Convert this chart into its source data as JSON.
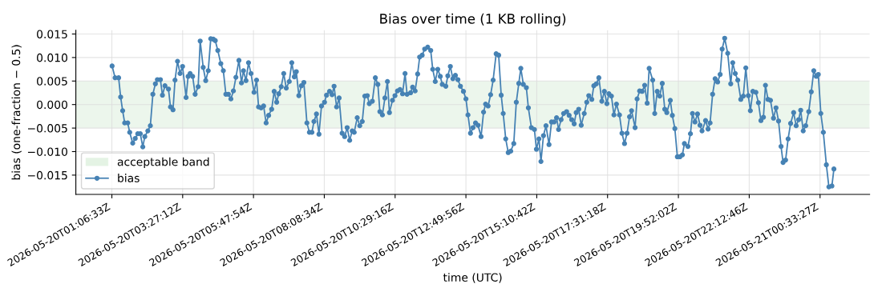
{
  "chart_data": {
    "type": "line",
    "title": "Bias over time (1 KB rolling)",
    "xlabel": "time (UTC)",
    "ylabel": "bias (one-fraction − 0.5)",
    "xlim": [
      "2026-05-19T23:55",
      "2026-05-21T02:12"
    ],
    "ylim": [
      -0.0191,
      0.0158
    ],
    "xticks": [
      {
        "value": "2026-05-20T01:06:33",
        "label": "2026-05-20T01:06:33Z"
      },
      {
        "value": "2026-05-20T03:27:12",
        "label": "2026-05-20T03:27:12Z"
      },
      {
        "value": "2026-05-20T05:47:54",
        "label": "2026-05-20T05:47:54Z"
      },
      {
        "value": "2026-05-20T08:08:34",
        "label": "2026-05-20T08:08:34Z"
      },
      {
        "value": "2026-05-20T10:29:16",
        "label": "2026-05-20T10:29:16Z"
      },
      {
        "value": "2026-05-20T12:49:56",
        "label": "2026-05-20T12:49:56Z"
      },
      {
        "value": "2026-05-20T15:10:42",
        "label": "2026-05-20T15:10:42Z"
      },
      {
        "value": "2026-05-20T17:31:18",
        "label": "2026-05-20T17:31:18Z"
      },
      {
        "value": "2026-05-20T19:52:02",
        "label": "2026-05-20T19:52:02Z"
      },
      {
        "value": "2026-05-20T22:12:46",
        "label": "2026-05-20T22:12:46Z"
      },
      {
        "value": "2026-05-21T00:33:27",
        "label": "2026-05-21T00:33:27Z"
      }
    ],
    "yticks": [
      {
        "value": -0.015,
        "label": "−0.015"
      },
      {
        "value": -0.01,
        "label": "−0.010"
      },
      {
        "value": -0.005,
        "label": "−0.005"
      },
      {
        "value": 0,
        "label": "0.000"
      },
      {
        "value": 0.005,
        "label": "0.005"
      },
      {
        "value": 0.01,
        "label": "0.010"
      },
      {
        "value": 0.015,
        "label": "0.015"
      }
    ],
    "grid": true,
    "legend": "bottom left",
    "marker": "circle",
    "line_style": "solid",
    "bands": [
      {
        "axis": "y",
        "from": -0.005,
        "to": 0.005,
        "label": "acceptable band",
        "color": "#2ca02c"
      }
    ],
    "series": [
      {
        "name": "bias",
        "color": "#4682b4",
        "x": [
          "2026-05-20T01:07",
          "2026-05-20T01:13",
          "2026-05-20T01:20",
          "2026-05-20T01:24",
          "2026-05-20T01:28",
          "2026-05-20T01:32",
          "2026-05-20T01:38",
          "2026-05-20T01:42",
          "2026-05-20T01:48",
          "2026-05-20T01:53",
          "2026-05-20T01:58",
          "2026-05-20T02:03",
          "2026-05-20T02:08",
          "2026-05-20T02:12",
          "2026-05-20T02:18",
          "2026-05-20T02:23",
          "2026-05-20T02:28",
          "2026-05-20T02:33",
          "2026-05-20T02:37",
          "2026-05-20T02:43",
          "2026-05-20T02:47",
          "2026-05-20T02:52",
          "2026-05-20T02:59",
          "2026-05-20T03:03",
          "2026-05-20T03:08",
          "2026-05-20T03:12",
          "2026-05-20T03:17",
          "2026-05-20T03:22",
          "2026-05-20T03:27",
          "2026-05-20T03:34",
          "2026-05-20T03:38",
          "2026-05-20T03:42",
          "2026-05-20T03:47",
          "2026-05-20T03:52",
          "2026-05-20T03:58",
          "2026-05-20T04:02",
          "2026-05-20T04:08",
          "2026-05-20T04:13",
          "2026-05-20T04:18",
          "2026-05-20T04:23",
          "2026-05-20T04:28",
          "2026-05-20T04:32",
          "2026-05-20T04:37",
          "2026-05-20T04:43",
          "2026-05-20T04:48",
          "2026-05-20T04:53",
          "2026-05-20T04:58",
          "2026-05-20T05:03",
          "2026-05-20T05:08",
          "2026-05-20T05:13",
          "2026-05-20T05:19",
          "2026-05-20T05:24",
          "2026-05-20T05:28",
          "2026-05-20T05:33",
          "2026-05-20T05:38",
          "2026-05-20T05:43",
          "2026-05-20T05:49",
          "2026-05-20T05:54",
          "2026-05-20T05:58",
          "2026-05-20T06:03",
          "2026-05-20T06:08",
          "2026-05-20T06:13",
          "2026-05-20T06:18",
          "2026-05-20T06:24",
          "2026-05-20T06:29",
          "2026-05-20T06:34",
          "2026-05-20T06:38",
          "2026-05-20T06:43",
          "2026-05-20T06:48",
          "2026-05-20T06:53",
          "2026-05-20T06:59",
          "2026-05-20T07:04",
          "2026-05-20T07:09",
          "2026-05-20T07:13",
          "2026-05-20T07:18",
          "2026-05-20T07:23",
          "2026-05-20T07:28",
          "2026-05-20T07:34",
          "2026-05-20T07:39",
          "2026-05-20T07:44",
          "2026-05-20T07:48",
          "2026-05-20T07:53",
          "2026-05-20T07:58",
          "2026-05-20T08:03",
          "2026-05-20T08:09",
          "2026-05-20T08:13",
          "2026-05-20T08:19",
          "2026-05-20T08:24",
          "2026-05-20T08:28",
          "2026-05-20T08:33",
          "2026-05-20T08:38",
          "2026-05-20T08:44",
          "2026-05-20T08:49",
          "2026-05-20T08:54",
          "2026-05-20T08:59",
          "2026-05-20T09:04",
          "2026-05-20T09:08",
          "2026-05-20T09:14",
          "2026-05-20T09:19",
          "2026-05-20T09:24",
          "2026-05-20T09:29",
          "2026-05-20T09:34",
          "2026-05-20T09:38",
          "2026-05-20T09:44",
          "2026-05-20T09:50",
          "2026-05-20T09:55",
          "2026-05-20T09:59",
          "2026-05-20T10:04",
          "2026-05-20T10:09",
          "2026-05-20T10:14",
          "2026-05-20T10:18",
          "2026-05-20T10:24",
          "2026-05-20T10:29",
          "2026-05-20T10:34",
          "2026-05-20T10:39",
          "2026-05-20T10:44",
          "2026-05-20T10:49",
          "2026-05-20T10:53",
          "2026-05-20T11:00",
          "2026-05-20T11:04",
          "2026-05-20T11:09",
          "2026-05-20T11:14",
          "2026-05-20T11:18",
          "2026-05-20T11:23",
          "2026-05-20T11:28",
          "2026-05-20T11:34",
          "2026-05-20T11:40",
          "2026-05-20T11:44",
          "2026-05-20T11:49",
          "2026-05-20T11:54",
          "2026-05-20T11:59",
          "2026-05-20T12:03",
          "2026-05-20T12:10",
          "2026-05-20T12:14",
          "2026-05-20T12:19",
          "2026-05-20T12:24",
          "2026-05-20T12:29",
          "2026-05-20T12:34",
          "2026-05-20T12:39",
          "2026-05-20T12:45",
          "2026-05-20T12:50",
          "2026-05-20T12:54",
          "2026-05-20T12:59",
          "2026-05-20T13:04",
          "2026-05-20T13:09",
          "2026-05-20T13:14",
          "2026-05-20T13:20",
          "2026-05-20T13:25",
          "2026-05-20T13:29",
          "2026-05-20T13:34",
          "2026-05-20T13:39",
          "2026-05-20T13:44",
          "2026-05-20T13:50",
          "2026-05-20T13:55",
          "2026-05-20T14:00",
          "2026-05-20T14:04",
          "2026-05-20T14:09",
          "2026-05-20T14:14",
          "2026-05-20T14:19",
          "2026-05-20T14:25",
          "2026-05-20T14:30",
          "2026-05-20T14:35",
          "2026-05-20T14:39",
          "2026-05-20T14:44",
          "2026-05-20T14:50",
          "2026-05-20T14:54",
          "2026-05-20T15:00",
          "2026-05-20T15:06",
          "2026-05-20T15:10",
          "2026-05-20T15:15",
          "2026-05-20T15:19",
          "2026-05-20T15:24",
          "2026-05-20T15:29",
          "2026-05-20T15:35",
          "2026-05-20T15:40",
          "2026-05-20T15:45",
          "2026-05-20T15:50",
          "2026-05-20T15:54",
          "2026-05-20T15:59",
          "2026-05-20T16:04",
          "2026-05-20T16:10",
          "2026-05-20T16:15",
          "2026-05-20T16:20",
          "2026-05-20T16:25",
          "2026-05-20T16:29",
          "2026-05-20T16:34",
          "2026-05-20T16:39",
          "2026-05-20T16:45",
          "2026-05-20T16:50",
          "2026-05-20T16:54",
          "2026-05-20T17:00",
          "2026-05-20T17:04",
          "2026-05-20T17:09",
          "2026-05-20T17:14",
          "2026-05-20T17:20",
          "2026-05-20T17:25",
          "2026-05-20T17:30",
          "2026-05-20T17:34",
          "2026-05-20T17:39",
          "2026-05-20T17:44",
          "2026-05-20T17:49",
          "2026-05-20T17:55",
          "2026-05-20T18:00",
          "2026-05-20T18:05",
          "2026-05-20T18:10",
          "2026-05-20T18:15",
          "2026-05-20T18:19",
          "2026-05-20T18:26",
          "2026-05-20T18:30",
          "2026-05-20T18:35",
          "2026-05-20T18:40",
          "2026-05-20T18:45",
          "2026-05-20T18:50",
          "2026-05-20T18:54",
          "2026-05-20T19:01",
          "2026-05-20T19:05",
          "2026-05-20T19:10",
          "2026-05-20T19:15",
          "2026-05-20T19:20",
          "2026-05-20T19:25",
          "2026-05-20T19:29",
          "2026-05-20T19:36",
          "2026-05-20T19:40",
          "2026-05-20T19:45",
          "2026-05-20T19:50",
          "2026-05-20T19:55",
          "2026-05-20T20:00",
          "2026-05-20T20:04",
          "2026-05-20T20:11",
          "2026-05-20T20:16",
          "2026-05-20T20:20",
          "2026-05-20T20:25",
          "2026-05-20T20:30",
          "2026-05-20T20:35",
          "2026-05-20T20:39",
          "2026-05-20T20:46",
          "2026-05-20T20:51",
          "2026-05-20T20:55",
          "2026-05-20T21:00",
          "2026-05-20T21:05",
          "2026-05-20T21:10",
          "2026-05-20T21:15",
          "2026-05-20T21:19",
          "2026-05-20T21:24",
          "2026-05-20T21:30",
          "2026-05-20T21:36",
          "2026-05-20T21:40",
          "2026-05-20T21:45",
          "2026-05-20T21:50",
          "2026-05-20T21:56",
          "2026-05-20T22:01",
          "2026-05-20T22:06",
          "2026-05-20T22:11",
          "2026-05-20T22:15",
          "2026-05-20T22:20",
          "2026-05-20T22:26",
          "2026-05-20T22:31",
          "2026-05-20T22:36",
          "2026-05-20T22:41",
          "2026-05-20T22:45",
          "2026-05-20T22:50",
          "2026-05-20T22:55",
          "2026-05-20T23:01",
          "2026-05-20T23:06",
          "2026-05-20T23:11",
          "2026-05-20T23:16",
          "2026-05-20T23:20",
          "2026-05-20T23:25",
          "2026-05-20T23:30",
          "2026-05-20T23:35",
          "2026-05-20T23:41",
          "2026-05-20T23:46",
          "2026-05-20T23:51",
          "2026-05-20T23:55",
          "2026-05-21T00:00",
          "2026-05-21T00:05",
          "2026-05-21T00:11",
          "2026-05-21T00:16",
          "2026-05-21T00:21",
          "2026-05-21T00:26",
          "2026-05-21T00:30",
          "2026-05-21T00:35",
          "2026-05-21T00:40",
          "2026-05-21T00:46",
          "2026-05-21T00:51",
          "2026-05-21T00:57",
          "2026-05-21T01:01"
        ],
        "values": [
          0.0082,
          0.0057,
          0.0057,
          0.0016,
          -0.0013,
          -0.0039,
          -0.0039,
          -0.0059,
          -0.0082,
          -0.0072,
          -0.0062,
          -0.0062,
          -0.009,
          -0.0068,
          -0.0056,
          -0.0045,
          0.0022,
          0.0044,
          0.0053,
          0.0053,
          0.002,
          0.004,
          0.0033,
          -0.0005,
          -0.0011,
          0.0052,
          0.0092,
          0.0066,
          0.0081,
          0.0015,
          0.006,
          0.0066,
          0.006,
          0.0022,
          0.0038,
          0.0135,
          0.0079,
          0.0051,
          0.0072,
          0.014,
          0.0139,
          0.0136,
          0.0115,
          0.0087,
          0.0072,
          0.0022,
          0.0022,
          0.0012,
          0.0029,
          0.0058,
          0.0094,
          0.0046,
          0.0072,
          0.0051,
          0.0089,
          0.0066,
          0.0026,
          0.0052,
          -0.0005,
          -0.0007,
          -0.0003,
          -0.0039,
          -0.0023,
          -0.001,
          0.0028,
          0.0005,
          0.0023,
          0.0038,
          0.0066,
          0.0035,
          0.0049,
          0.0089,
          0.0059,
          0.007,
          0.0019,
          0.004,
          0.0047,
          -0.0039,
          -0.0059,
          -0.0059,
          -0.0036,
          -0.002,
          -0.0063,
          -0.0003,
          0.0005,
          0.002,
          0.0028,
          0.0021,
          0.0039,
          -0.0005,
          0.0014,
          -0.0061,
          -0.0068,
          -0.0049,
          -0.0076,
          -0.0056,
          -0.0059,
          -0.0028,
          -0.0045,
          -0.0036,
          0.0018,
          0.0019,
          0.0002,
          0.0007,
          0.0057,
          0.0043,
          -0.0015,
          -0.0022,
          0.0014,
          0.0049,
          -0.0017,
          0.0009,
          0.0019,
          0.0029,
          0.0032,
          0.0023,
          0.0066,
          0.0022,
          0.0025,
          0.0037,
          0.0029,
          0.0065,
          0.0101,
          0.0105,
          0.0118,
          0.0122,
          0.0115,
          0.0075,
          0.0049,
          0.0075,
          0.006,
          0.0043,
          0.0039,
          0.0061,
          0.0081,
          0.0055,
          0.0062,
          0.0053,
          0.0039,
          0.0028,
          0.0012,
          -0.0022,
          -0.0061,
          -0.0049,
          -0.0039,
          -0.0044,
          -0.0068,
          -0.0016,
          0.0001,
          -0.0003,
          0.0021,
          0.0052,
          0.0108,
          0.0105,
          0.002,
          -0.0019,
          -0.0073,
          -0.0102,
          -0.0099,
          -0.0083,
          0.0005,
          0.0045,
          0.0077,
          0.0043,
          0.0036,
          -0.0007,
          -0.0049,
          -0.0053,
          -0.0095,
          -0.0073,
          -0.0121,
          -0.0066,
          -0.0045,
          -0.0085,
          -0.0037,
          -0.0037,
          -0.0028,
          -0.0053,
          -0.0032,
          -0.0019,
          -0.0015,
          -0.0023,
          -0.0032,
          -0.0041,
          -0.0017,
          -0.001,
          -0.0044,
          -0.0019,
          0.0005,
          0.0019,
          0.0011,
          0.004,
          0.0044,
          0.0057,
          0.0007,
          0.0028,
          0.0002,
          0.0023,
          0.0018,
          -0.0022,
          0.0001,
          -0.0022,
          -0.0061,
          -0.0083,
          -0.0061,
          -0.0026,
          -0.0013,
          -0.0049,
          0.0012,
          0.0029,
          0.0028,
          0.0041,
          0.0003,
          0.0077,
          0.0052,
          -0.0019,
          0.0028,
          0.0018,
          0.0045,
          -0.001,
          -0.0017,
          0.0009,
          -0.0023,
          -0.0051,
          -0.0111,
          -0.0111,
          -0.0107,
          -0.0083,
          -0.0089,
          -0.0062,
          -0.0019,
          -0.0037,
          -0.002,
          -0.0044,
          -0.0056,
          -0.0034,
          -0.0052,
          -0.0039,
          0.0022,
          0.0055,
          0.0048,
          0.0064,
          0.0118,
          0.0141,
          0.0109,
          0.0044,
          0.0089,
          0.0066,
          0.0052,
          0.0011,
          0.0018,
          0.0078,
          0.0019,
          -0.0013,
          0.0028,
          0.0026,
          0.0004,
          -0.0034,
          -0.0027,
          0.0041,
          0.0011,
          0.0009,
          -0.0029,
          -0.0007,
          -0.0035,
          -0.0089,
          -0.0123,
          -0.0118,
          -0.0073,
          -0.004,
          -0.0017,
          -0.0045,
          -0.0032,
          -0.0012,
          -0.0056,
          -0.0045,
          -0.0015,
          0.0027,
          0.0072,
          0.006,
          0.0064,
          -0.0019,
          -0.0059,
          -0.0128,
          -0.0175,
          -0.0173,
          -0.0137
        ]
      }
    ]
  }
}
